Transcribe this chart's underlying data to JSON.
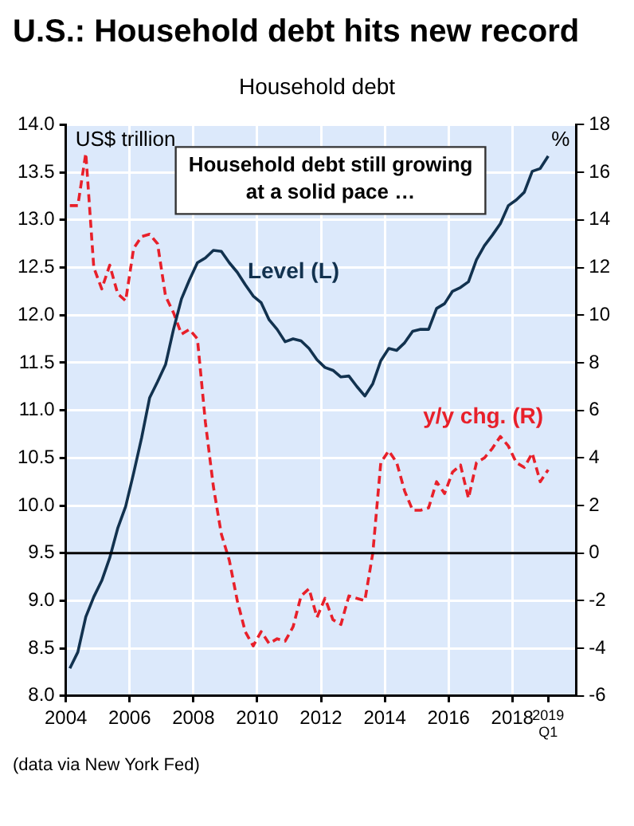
{
  "chart_data": {
    "type": "line",
    "title": "U.S.: Household debt hits new record",
    "subtitle": "Household debt",
    "ylabel": "US$ trillion",
    "y2label": "%",
    "x": [
      2004.125,
      2004.375,
      2004.625,
      2004.875,
      2005.125,
      2005.375,
      2005.625,
      2005.875,
      2006.125,
      2006.375,
      2006.625,
      2006.875,
      2007.125,
      2007.375,
      2007.625,
      2007.875,
      2008.125,
      2008.375,
      2008.625,
      2008.875,
      2009.125,
      2009.375,
      2009.625,
      2009.875,
      2010.125,
      2010.375,
      2010.625,
      2010.875,
      2011.125,
      2011.375,
      2011.625,
      2011.875,
      2012.125,
      2012.375,
      2012.625,
      2012.875,
      2013.125,
      2013.375,
      2013.625,
      2013.875,
      2014.125,
      2014.375,
      2014.625,
      2014.875,
      2015.125,
      2015.375,
      2015.625,
      2015.875,
      2016.125,
      2016.375,
      2016.625,
      2016.875,
      2017.125,
      2017.375,
      2017.625,
      2017.875,
      2018.125,
      2018.375,
      2018.625,
      2018.875,
      2019.125
    ],
    "series": [
      {
        "name": "Level (L)",
        "color": "#12324f",
        "line_style": "solid",
        "values": [
          8.29,
          8.46,
          8.83,
          9.04,
          9.21,
          9.45,
          9.76,
          9.99,
          10.34,
          10.71,
          11.13,
          11.3,
          11.48,
          11.85,
          12.17,
          12.37,
          12.55,
          12.6,
          12.68,
          12.67,
          12.55,
          12.45,
          12.32,
          12.2,
          12.13,
          11.95,
          11.85,
          11.72,
          11.75,
          11.73,
          11.65,
          11.53,
          11.45,
          11.42,
          11.35,
          11.36,
          11.25,
          11.15,
          11.28,
          11.52,
          11.65,
          11.63,
          11.71,
          11.83,
          11.85,
          11.85,
          12.07,
          12.12,
          12.25,
          12.29,
          12.35,
          12.58,
          12.73,
          12.84,
          12.96,
          13.15,
          13.21,
          13.29,
          13.51,
          13.54,
          13.67
        ]
      },
      {
        "name": "y/y chg. (R)",
        "color": "#e8202a",
        "line_style": "dashed",
        "axis": "y2",
        "values": [
          14.6,
          14.6,
          16.8,
          12.0,
          11.1,
          12.1,
          10.9,
          10.6,
          12.8,
          13.3,
          13.4,
          13.0,
          10.8,
          10.1,
          9.2,
          9.4,
          9.0,
          5.5,
          2.8,
          0.8,
          -0.3,
          -2.0,
          -3.3,
          -3.9,
          -3.3,
          -3.8,
          -3.6,
          -3.7,
          -3.1,
          -1.8,
          -1.5,
          -2.7,
          -1.9,
          -2.8,
          -3.0,
          -1.8,
          -1.9,
          -2.0,
          0.0,
          3.8,
          4.3,
          3.8,
          2.6,
          1.8,
          1.8,
          1.9,
          3.0,
          2.5,
          3.4,
          3.7,
          2.3,
          3.8,
          4.0,
          4.4,
          4.9,
          4.5,
          3.8,
          3.6,
          4.2,
          3.0,
          3.5
        ]
      }
    ],
    "xlim": [
      2004,
      2020
    ],
    "xticks": [
      2004,
      2006,
      2008,
      2010,
      2012,
      2014,
      2016,
      2018,
      {
        "value": 2019.125,
        "label": "2019\nQ1"
      }
    ],
    "ylim": [
      8,
      14
    ],
    "yticks": [
      {
        "value": 8,
        "label": "8.0"
      },
      8.5,
      {
        "value": 9,
        "label": "9.0"
      },
      9.5,
      {
        "value": 10,
        "label": "10.0"
      },
      10.5,
      {
        "value": 11,
        "label": "11.0"
      },
      11.5,
      {
        "value": 12,
        "label": "12.0"
      },
      12.5,
      {
        "value": 13,
        "label": "13.0"
      },
      13.5,
      {
        "value": 14,
        "label": "14.0"
      }
    ],
    "y2lim": [
      -6,
      18
    ],
    "y2ticks": [
      -6,
      -4,
      -2,
      0,
      2,
      4,
      6,
      8,
      10,
      12,
      14,
      16,
      18
    ],
    "ref_lines": [
      {
        "axis": "y2",
        "value": 0,
        "color": "#000000"
      }
    ],
    "grid": true,
    "legend": false,
    "marker": "none",
    "annotations": [
      "Household debt still growing\nat a solid pace …",
      "(data via New York Fed)"
    ]
  }
}
